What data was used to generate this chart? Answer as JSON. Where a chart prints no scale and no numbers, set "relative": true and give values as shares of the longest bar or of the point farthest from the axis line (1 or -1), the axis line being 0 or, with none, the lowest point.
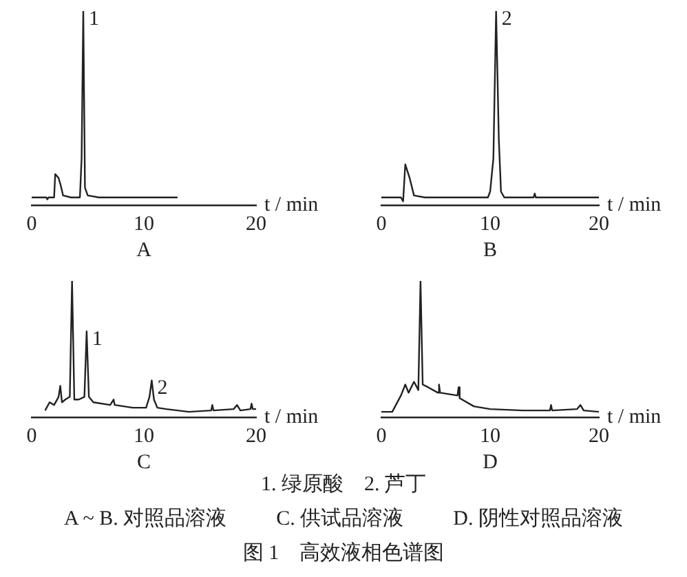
{
  "chart_data": [
    {
      "type": "line",
      "title": "A",
      "xlabel": "t / min",
      "relative": true,
      "xlim": [
        0,
        20
      ],
      "xticks": [
        0,
        10,
        20
      ],
      "grid": false,
      "legend": false,
      "marker": "none",
      "series": [
        {
          "color": "#222222",
          "x": [
            0,
            1.3,
            1.4,
            1.5,
            2,
            2.1,
            2.4,
            2.6,
            2.8,
            3.5,
            4.3,
            4.45,
            4.6,
            4.75,
            5,
            6,
            13
          ],
          "values": [
            0.04,
            0.04,
            0.03,
            0.04,
            0.04,
            0.16,
            0.14,
            0.1,
            0.05,
            0.04,
            0.04,
            0.24,
            1,
            0.09,
            0.05,
            0.04,
            0.04
          ]
        }
      ],
      "annotations": [
        {
          "text": "1",
          "x": 4.6,
          "y": 1
        },
        "1. 绿原酸　2. 芦丁",
        "A ~ B. 对照品溶液",
        "C. 供试品溶液",
        "D. 阴性对照品溶液",
        "图 1　高效液相色谱图"
      ]
    },
    {
      "type": "line",
      "title": "B",
      "xlabel": "t / min",
      "relative": true,
      "xlim": [
        0,
        20
      ],
      "xticks": [
        0,
        10,
        20
      ],
      "grid": false,
      "legend": false,
      "marker": "none",
      "series": [
        {
          "color": "#222222",
          "x": [
            0,
            1.8,
            2,
            2.2,
            2.6,
            3,
            4,
            9.8,
            10,
            10.3,
            10.55,
            10.8,
            11,
            11.3,
            14,
            14.1,
            14.2,
            20
          ],
          "values": [
            0.04,
            0.04,
            0.02,
            0.21,
            0.14,
            0.05,
            0.04,
            0.04,
            0.07,
            0.24,
            1,
            0.34,
            0.07,
            0.04,
            0.04,
            0.06,
            0.04,
            0.04
          ]
        }
      ],
      "annotations": [
        {
          "text": "2",
          "x": 10.55,
          "y": 1
        }
      ]
    },
    {
      "type": "line",
      "title": "C",
      "xlabel": "t / min",
      "relative": true,
      "xlim": [
        0,
        20
      ],
      "xticks": [
        0,
        10,
        20
      ],
      "grid": false,
      "legend": false,
      "marker": "none",
      "series": [
        {
          "color": "#222222",
          "x": [
            1.2,
            1.6,
            2,
            2.4,
            2.55,
            2.7,
            3,
            3.4,
            3.6,
            3.8,
            4.2,
            4.7,
            4.9,
            5.1,
            5.5,
            7,
            7.3,
            7.4,
            9,
            10.2,
            10.5,
            10.7,
            10.9,
            11.2,
            12,
            14,
            16,
            16.1,
            16.2,
            18,
            18.3,
            18.6,
            19.5,
            19.6,
            19.7,
            20
          ],
          "values": [
            0.05,
            0.11,
            0.09,
            0.15,
            0.23,
            0.11,
            0.13,
            0.15,
            1,
            0.13,
            0.13,
            0.15,
            0.63,
            0.15,
            0.11,
            0.09,
            0.13,
            0.09,
            0.07,
            0.07,
            0.15,
            0.27,
            0.13,
            0.07,
            0.06,
            0.04,
            0.05,
            0.09,
            0.05,
            0.06,
            0.09,
            0.05,
            0.06,
            0.1,
            0.06,
            0.06
          ]
        }
      ],
      "annotations": [
        {
          "text": "1",
          "x": 4.9,
          "y": 0.63
        },
        {
          "text": "2",
          "x": 10.7,
          "y": 0.27
        }
      ]
    },
    {
      "type": "line",
      "title": "D",
      "xlabel": "t / min",
      "relative": true,
      "xlim": [
        0,
        20
      ],
      "xticks": [
        0,
        10,
        20
      ],
      "grid": false,
      "legend": false,
      "marker": "none",
      "series": [
        {
          "color": "#222222",
          "x": [
            0,
            1,
            1.8,
            2.2,
            2.5,
            3,
            3.4,
            3.6,
            3.8,
            4.3,
            5.2,
            5.3,
            5.4,
            7,
            7.1,
            7.2,
            8.5,
            10,
            13,
            15.5,
            15.6,
            15.7,
            18,
            18.3,
            18.6,
            20
          ],
          "values": [
            0.04,
            0.04,
            0.16,
            0.24,
            0.18,
            0.26,
            0.2,
            1,
            0.24,
            0.22,
            0.18,
            0.24,
            0.18,
            0.16,
            0.22,
            0.14,
            0.08,
            0.06,
            0.05,
            0.05,
            0.09,
            0.05,
            0.06,
            0.09,
            0.05,
            0.04
          ]
        }
      ]
    }
  ]
}
